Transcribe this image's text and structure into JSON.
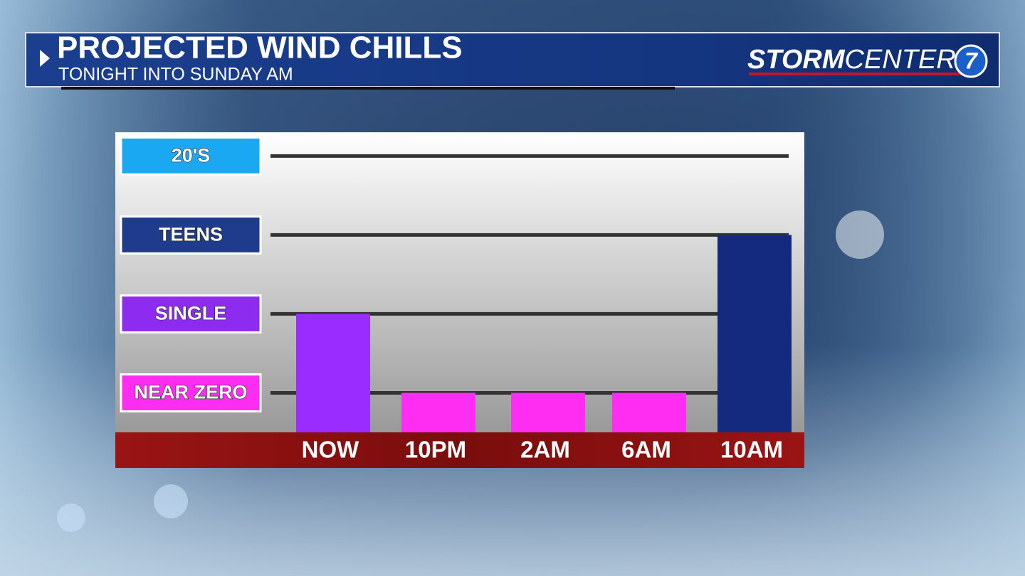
{
  "chart_data": {
    "type": "bar",
    "title": "PROJECTED WIND CHILLS",
    "subtitle": "TONIGHT INTO SUNDAY AM",
    "categories": [
      "NOW",
      "10PM",
      "2AM",
      "6AM",
      "10AM"
    ],
    "values": [
      1,
      0,
      0,
      0,
      2
    ],
    "colors": [
      "#9a2cff",
      "#ff2cf2",
      "#ff2cf2",
      "#ff2cf2",
      "#132a7e"
    ],
    "ylim": [
      -0.5,
      3.3
    ],
    "yticks": [
      {
        "value": 0,
        "label": "NEAR ZERO"
      },
      {
        "value": 1,
        "label": "SINGLE"
      },
      {
        "value": 2,
        "label": "TEENS"
      },
      {
        "value": 3,
        "label": "20'S"
      }
    ],
    "ytick_colors": [
      "#ff2cf2",
      "#8e2bf0",
      "#1f3b8c",
      "#1aa8f2"
    ],
    "grid": true
  },
  "brand": {
    "name_bold": "STORM",
    "name_light": "CENTER",
    "badge": "7"
  }
}
